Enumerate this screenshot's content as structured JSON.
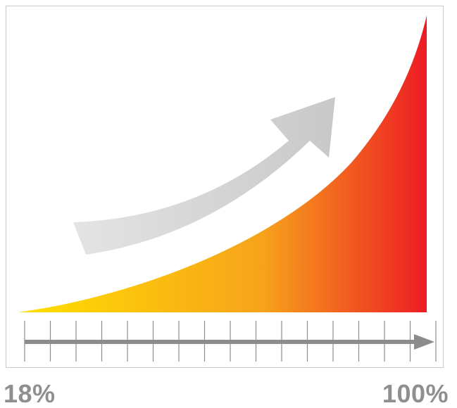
{
  "heading": "",
  "scale": {
    "start_label": "18%",
    "end_label": "100%",
    "start_value": 18,
    "end_value": 100
  },
  "colors": {
    "curve_start": "#ffe000",
    "curve_mid": "#f7a21b",
    "curve_end": "#ec1c24",
    "arrow": "#d8d8d8",
    "axis": "#8c8c8c",
    "frame": "#c9c9c9",
    "label": "#8f8f8f"
  },
  "icons": {
    "growth_arrow": "curved-up-arrow-icon",
    "axis_arrow": "right-arrow-icon"
  }
}
